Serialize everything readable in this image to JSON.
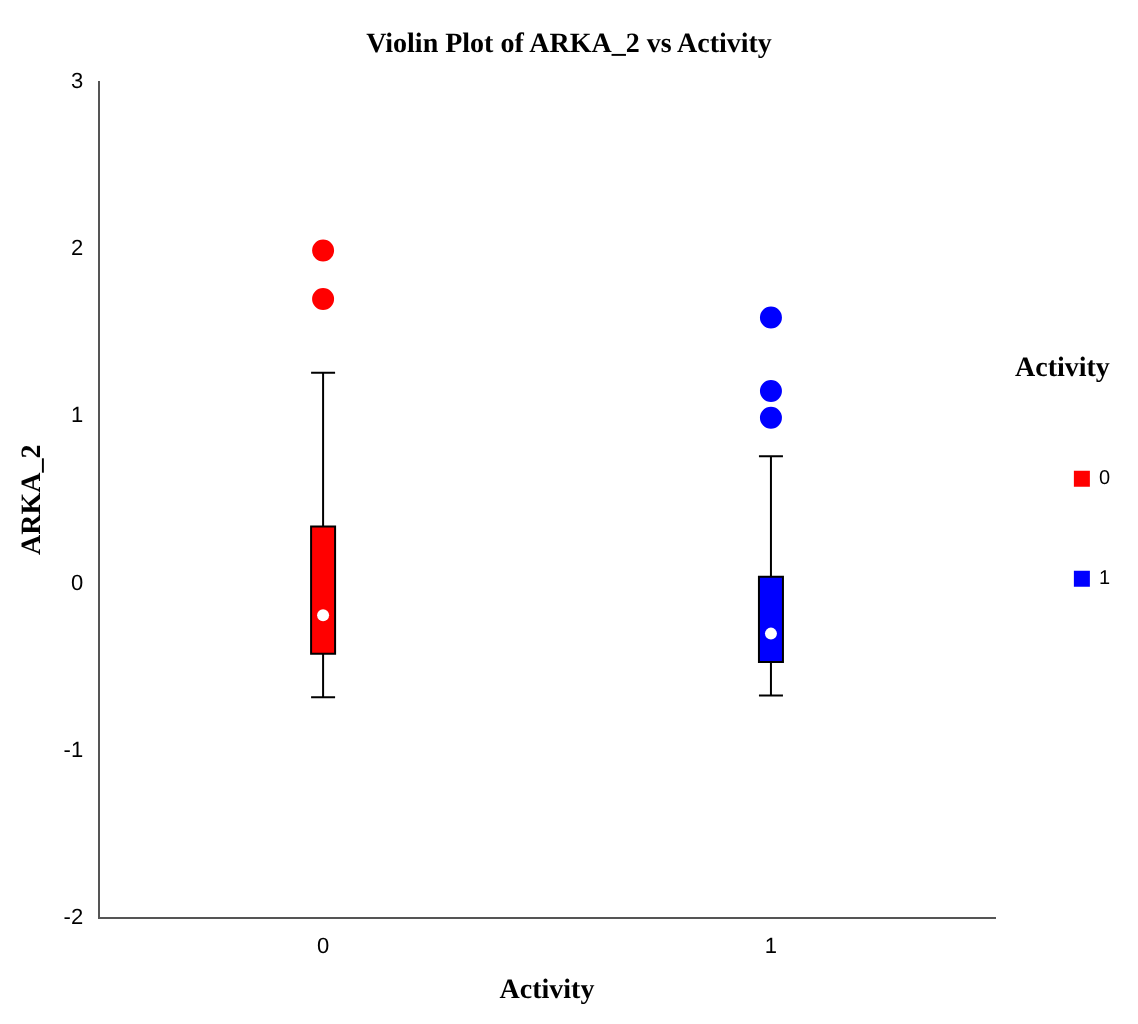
{
  "chart_data": {
    "type": "box",
    "title": "Violin Plot of ARKA_2 vs Activity",
    "xlabel": "Activity",
    "ylabel": "ARKA_2",
    "legend_title": "Activity",
    "categories": [
      "0",
      "1"
    ],
    "series": [
      {
        "name": "0",
        "color": "#ff0000",
        "boxes": [
          {
            "low": -0.68,
            "q1": -0.42,
            "median": -0.19,
            "q3": 0.34,
            "high": 1.26,
            "outliers": [
              1.99,
              1.7
            ]
          },
          null
        ]
      },
      {
        "name": "1",
        "color": "#0000ff",
        "boxes": [
          null,
          {
            "low": -0.67,
            "q1": -0.47,
            "median": -0.3,
            "q3": 0.04,
            "high": 0.76,
            "outliers": [
              1.59,
              1.15,
              0.99
            ]
          }
        ]
      }
    ],
    "ylim": [
      -2,
      3
    ],
    "yticks": [
      -2,
      -1,
      0,
      1,
      2,
      3
    ],
    "grid": false,
    "legend": "right"
  }
}
